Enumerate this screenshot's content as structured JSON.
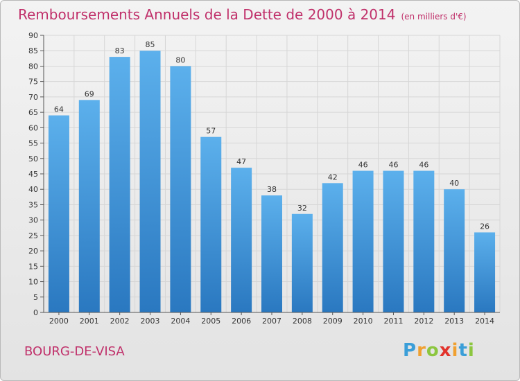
{
  "title": "Remboursements Annuels de la Dette de 2000 à 2014",
  "unit": "(en milliers d'€)",
  "commune": "BOURG-DE-VISA",
  "brand": "Proxiti",
  "colors": {
    "title": "#c0306a",
    "bar_top": "#5cb0ec",
    "bar_bottom": "#2a78c0",
    "grid": "#d6d6d6"
  },
  "chart_data": {
    "type": "bar",
    "title": "Remboursements Annuels de la Dette de 2000 à 2014",
    "xlabel": "",
    "ylabel": "(en milliers d'€)",
    "categories": [
      "2000",
      "2001",
      "2002",
      "2003",
      "2004",
      "2005",
      "2006",
      "2007",
      "2008",
      "2009",
      "2010",
      "2011",
      "2012",
      "2013",
      "2014"
    ],
    "values": [
      64,
      69,
      83,
      85,
      80,
      57,
      47,
      38,
      32,
      42,
      46,
      46,
      46,
      40,
      26
    ],
    "ylim": [
      0,
      90
    ],
    "yticks": [
      0,
      5,
      10,
      15,
      20,
      25,
      30,
      35,
      40,
      45,
      50,
      55,
      60,
      65,
      70,
      75,
      80,
      85,
      90
    ],
    "grid": true
  }
}
